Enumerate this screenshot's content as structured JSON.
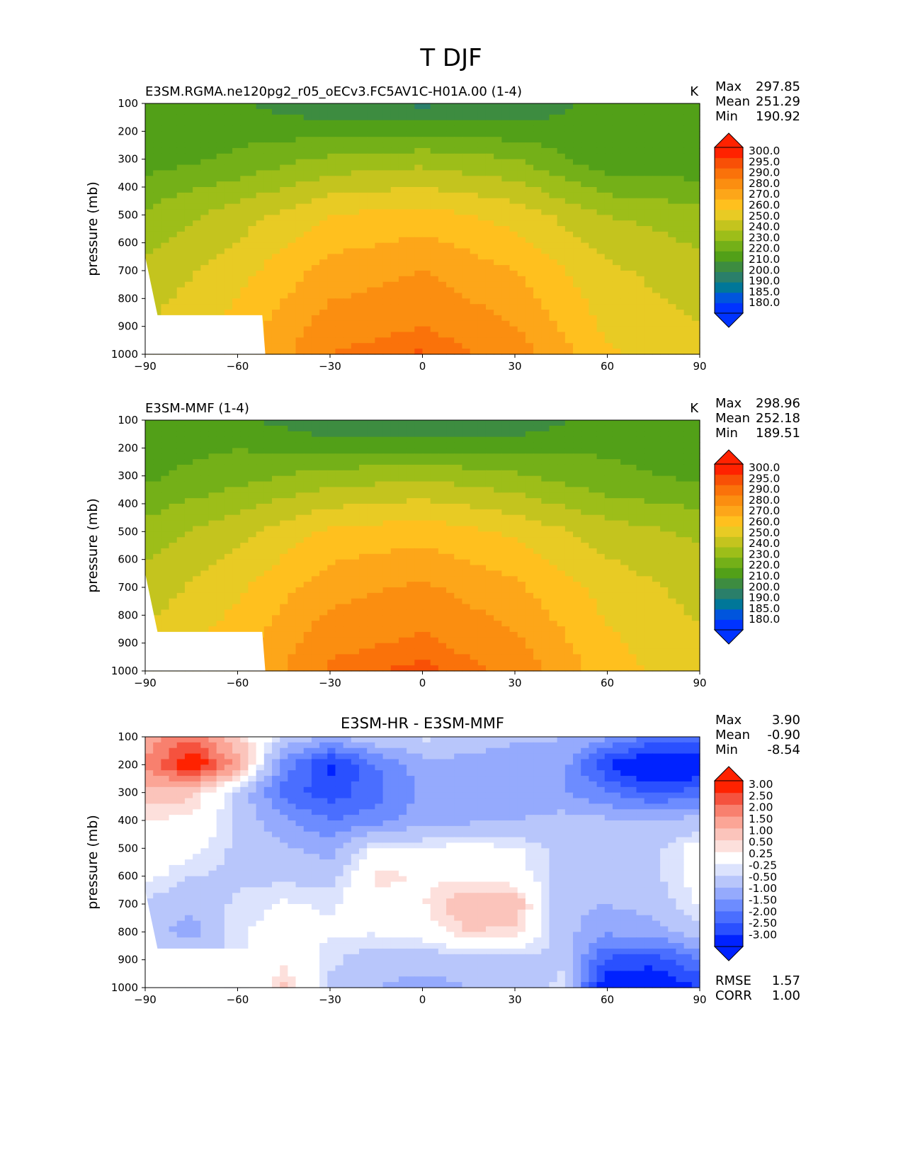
{
  "suptitle": "T DJF",
  "colors": {
    "abs_levels": [
      "#0033ff",
      "#0055dd",
      "#007799",
      "#2a7f6a",
      "#3d8c40",
      "#52a018",
      "#74b018",
      "#9dbe19",
      "#c4c41e",
      "#e8cb24",
      "#ffc01e",
      "#fda619",
      "#fb8e10",
      "#fa720a",
      "#f85006",
      "#ff2200"
    ],
    "diff_levels": [
      "#0022ff",
      "#2a50ff",
      "#4a6eff",
      "#6d8cff",
      "#95aafd",
      "#b8c6fb",
      "#dce3fd",
      "#ffffff",
      "#fde0dc",
      "#fbc4bb",
      "#fba596",
      "#f8806e",
      "#f5523e",
      "#ff2200"
    ]
  },
  "chart_data": [
    {
      "type": "heatmap",
      "subtype": "latitude-pressure contour",
      "title": "E3SM.RGMA.ne120pg2_r05_oECv3.FC5AV1C-H01A.00 (1-4)",
      "units": "K",
      "xlabel": "",
      "ylabel": "pressure (mb)",
      "xlim": [
        -90,
        90
      ],
      "ylim": [
        1000,
        100
      ],
      "xticks": [
        "−90",
        "−60",
        "−30",
        "0",
        "30",
        "60",
        "90"
      ],
      "yticks": [
        "100",
        "200",
        "300",
        "400",
        "500",
        "600",
        "700",
        "800",
        "900",
        "1000"
      ],
      "stats": {
        "Max": "297.85",
        "Mean": "251.29",
        "Min": "190.92"
      },
      "colorbar_labels": [
        "300.0",
        "295.0",
        "290.0",
        "280.0",
        "270.0",
        "260.0",
        "250.0",
        "240.0",
        "230.0",
        "220.0",
        "210.0",
        "200.0",
        "190.0",
        "185.0",
        "180.0"
      ],
      "field": {
        "lats": [
          -90,
          -60,
          -30,
          0,
          30,
          60,
          90
        ],
        "levels": [
          100,
          300,
          500,
          700,
          900,
          1000
        ],
        "values": [
          [
            213,
            212,
            200,
            198,
            200,
            215,
            216
          ],
          [
            215,
            222,
            232,
            236,
            230,
            212,
            212
          ],
          [
            232,
            245,
            260,
            264,
            256,
            240,
            234
          ],
          [
            242,
            256,
            274,
            280,
            270,
            252,
            244
          ],
          [
            250,
            264,
            285,
            290,
            280,
            258,
            250
          ],
          [
            250,
            266,
            290,
            296,
            286,
            262,
            252
          ]
        ],
        "missing_below": [
          [
            -90,
            650
          ],
          [
            -86,
            860
          ],
          [
            -52,
            860
          ],
          [
            -51,
            1000
          ]
        ]
      }
    },
    {
      "type": "heatmap",
      "subtype": "latitude-pressure contour",
      "title": "E3SM-MMF (1-4)",
      "units": "K",
      "xlabel": "",
      "ylabel": "pressure (mb)",
      "xlim": [
        -90,
        90
      ],
      "ylim": [
        1000,
        100
      ],
      "xticks": [
        "−90",
        "−60",
        "−30",
        "0",
        "30",
        "60",
        "90"
      ],
      "yticks": [
        "100",
        "200",
        "300",
        "400",
        "500",
        "600",
        "700",
        "800",
        "900",
        "1000"
      ],
      "stats": {
        "Max": "298.96",
        "Mean": "252.18",
        "Min": "189.51"
      },
      "colorbar_labels": [
        "300.0",
        "295.0",
        "290.0",
        "280.0",
        "270.0",
        "260.0",
        "250.0",
        "240.0",
        "230.0",
        "220.0",
        "210.0",
        "200.0",
        "190.0",
        "185.0",
        "180.0"
      ],
      "field": {
        "lats": [
          -90,
          -60,
          -30,
          0,
          30,
          60,
          90
        ],
        "levels": [
          100,
          300,
          500,
          700,
          900,
          1000
        ],
        "values": [
          [
            215,
            213,
            200,
            198,
            201,
            216,
            217
          ],
          [
            218,
            226,
            234,
            238,
            232,
            222,
            218
          ],
          [
            234,
            247,
            262,
            266,
            258,
            245,
            238
          ],
          [
            244,
            258,
            276,
            282,
            272,
            256,
            246
          ],
          [
            252,
            266,
            287,
            292,
            282,
            262,
            252
          ],
          [
            252,
            268,
            292,
            297,
            288,
            264,
            254
          ]
        ],
        "missing_below": [
          [
            -90,
            650
          ],
          [
            -86,
            860
          ],
          [
            -52,
            860
          ],
          [
            -51,
            1000
          ]
        ]
      }
    },
    {
      "type": "heatmap",
      "subtype": "latitude-pressure contour (difference)",
      "title": "E3SM-HR - E3SM-MMF",
      "units": "",
      "xlabel": "",
      "ylabel": "pressure (mb)",
      "xlim": [
        -90,
        90
      ],
      "ylim": [
        1000,
        100
      ],
      "xticks": [
        "−90",
        "−60",
        "−30",
        "0",
        "30",
        "60",
        "90"
      ],
      "yticks": [
        "100",
        "200",
        "300",
        "400",
        "500",
        "600",
        "700",
        "800",
        "900",
        "1000"
      ],
      "stats": {
        "Max": "3.90",
        "Mean": "-0.90",
        "Min": "-8.54"
      },
      "colorbar_labels": [
        "3.00",
        "2.50",
        "2.00",
        "1.50",
        "1.00",
        "0.50",
        "0.25",
        "-0.25",
        "-0.50",
        "-1.00",
        "-1.50",
        "-2.00",
        "-2.50",
        "-3.00"
      ],
      "extra_stats": {
        "RMSE": "1.57",
        "CORR": "1.00"
      },
      "field": {
        "lats": [
          -90,
          -75,
          -60,
          -45,
          -30,
          -15,
          0,
          15,
          30,
          45,
          60,
          75,
          90
        ],
        "levels": [
          100,
          200,
          300,
          400,
          500,
          600,
          700,
          800,
          900,
          1000
        ],
        "values": [
          [
            1.2,
            1.8,
            0.6,
            -0.6,
            -1.0,
            -0.6,
            -0.4,
            -0.6,
            -0.8,
            -1.0,
            -1.4,
            -2.0,
            -2.2
          ],
          [
            1.5,
            3.2,
            1.2,
            -1.6,
            -3.2,
            -2.0,
            -1.2,
            -1.2,
            -1.5,
            -1.2,
            -3.0,
            -4.0,
            -3.6
          ],
          [
            0.8,
            0.6,
            -0.6,
            -2.2,
            -2.8,
            -2.2,
            -1.4,
            -1.4,
            -1.5,
            -1.4,
            -2.0,
            -2.6,
            -2.2
          ],
          [
            0.2,
            0.2,
            -0.6,
            -1.4,
            -2.0,
            -1.7,
            -1.2,
            -1.1,
            -1.0,
            -0.8,
            -0.9,
            -1.0,
            -0.8
          ],
          [
            0.0,
            -0.1,
            -0.6,
            -0.9,
            -1.2,
            -0.1,
            -0.2,
            -0.1,
            -0.2,
            -0.6,
            -0.7,
            -0.6,
            0.0
          ],
          [
            -0.1,
            -0.5,
            -0.6,
            -0.6,
            -0.7,
            0.4,
            0.2,
            0.1,
            0.0,
            -0.7,
            -0.8,
            -0.6,
            0.0
          ],
          [
            -0.6,
            -0.9,
            -0.4,
            -0.2,
            -0.3,
            0.0,
            0.2,
            0.9,
            0.8,
            -0.8,
            -1.0,
            -0.8,
            -0.2
          ],
          [
            -0.8,
            -1.2,
            -0.3,
            -0.1,
            -0.2,
            -0.2,
            0.0,
            0.5,
            0.4,
            -0.8,
            -1.4,
            -1.2,
            -0.6
          ],
          [
            -0.2,
            -0.4,
            -0.4,
            0.1,
            -0.4,
            -0.8,
            -0.8,
            -0.8,
            -0.6,
            -0.6,
            -2.6,
            -2.8,
            -2.0
          ],
          [
            -0.1,
            -0.3,
            -0.6,
            0.6,
            -0.6,
            -1.0,
            -1.2,
            -1.0,
            -0.8,
            -0.4,
            -3.6,
            -3.6,
            -3.0
          ]
        ],
        "missing_below": [
          [
            -90,
            650
          ],
          [
            -86,
            860
          ],
          [
            -52,
            860
          ],
          [
            -51,
            1000
          ]
        ]
      }
    }
  ]
}
